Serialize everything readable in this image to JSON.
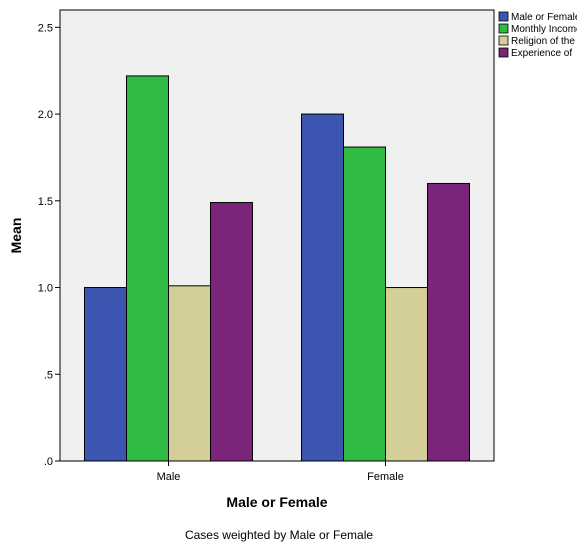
{
  "chart_data": {
    "type": "bar",
    "categories": [
      "Male",
      "Female"
    ],
    "series": [
      {
        "name": "Male or Female",
        "values": [
          1.0,
          2.0
        ],
        "color": "#3b55b0"
      },
      {
        "name": "Monthly Income",
        "values": [
          2.22,
          1.81
        ],
        "color": "#2fba44"
      },
      {
        "name": "Religion of the",
        "values": [
          1.01,
          1.0
        ],
        "color": "#d4cf99"
      },
      {
        "name": "Experience of",
        "values": [
          1.49,
          1.6
        ],
        "color": "#7a2579"
      }
    ],
    "xlabel": "Male or Female",
    "ylabel": "Mean",
    "ylim": [
      0,
      2.6
    ],
    "yticks": [
      0,
      0.5,
      1.0,
      1.5,
      2.0,
      2.5
    ],
    "ytick_labels": [
      ".0",
      ".5",
      "1.0",
      "1.5",
      "2.0",
      "2.5"
    ],
    "plot_background": "#f0f0f0",
    "legend_position": "top-right",
    "footnote": "Cases weighted by Male or Female"
  }
}
